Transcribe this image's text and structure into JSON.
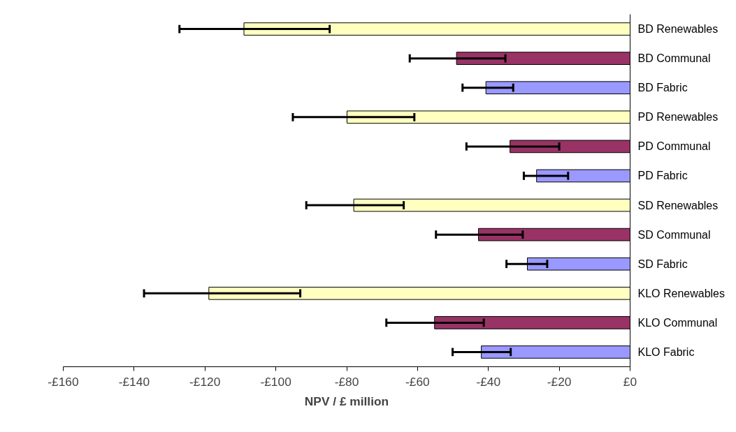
{
  "chart_data": {
    "type": "bar",
    "orientation": "horizontal",
    "xlabel": "NPV / £ million",
    "categories": [
      "BD Renewables",
      "BD Communal",
      "BD Fabric",
      "PD Renewables",
      "PD Communal",
      "PD Fabric",
      "SD Renewables",
      "SD Communal",
      "SD Fabric",
      "KLO Renewables",
      "KLO Communal",
      "KLO Fabric"
    ],
    "values": [
      -109,
      -49,
      -40.7,
      -79.9,
      -33.9,
      -26.4,
      -78,
      -42.8,
      -29,
      -118.9,
      -55.2,
      -42
    ],
    "colors": [
      "#ffffc0",
      "#993366",
      "#9999ff",
      "#ffffc0",
      "#993366",
      "#9999ff",
      "#ffffc0",
      "#993366",
      "#9999ff",
      "#ffffc0",
      "#993366",
      "#9999ff"
    ],
    "errors": [
      [
        -127.2,
        -84.8
      ],
      [
        -62.2,
        -35.2
      ],
      [
        -47.3,
        -33
      ],
      [
        -95.2,
        -60.9
      ],
      [
        -46.2,
        -20
      ],
      [
        -30,
        -17.5
      ],
      [
        -91.4,
        -63.9
      ],
      [
        -54.8,
        -30.3
      ],
      [
        -34.9,
        -23.4
      ],
      [
        -137.2,
        -93.1
      ],
      [
        -68.8,
        -41.3
      ],
      [
        -50.1,
        -33.7
      ]
    ],
    "xlim": [
      -160,
      0
    ],
    "xticks": [
      {
        "value": -160,
        "label": "-£160"
      },
      {
        "value": -140,
        "label": "-£140"
      },
      {
        "value": -120,
        "label": "-£120"
      },
      {
        "value": -100,
        "label": "-£100"
      },
      {
        "value": -80,
        "label": "-£80"
      },
      {
        "value": -60,
        "label": "-£60"
      },
      {
        "value": -40,
        "label": "-£40"
      },
      {
        "value": -20,
        "label": "-£20"
      },
      {
        "value": 0,
        "label": "£0"
      }
    ],
    "grid": false
  }
}
